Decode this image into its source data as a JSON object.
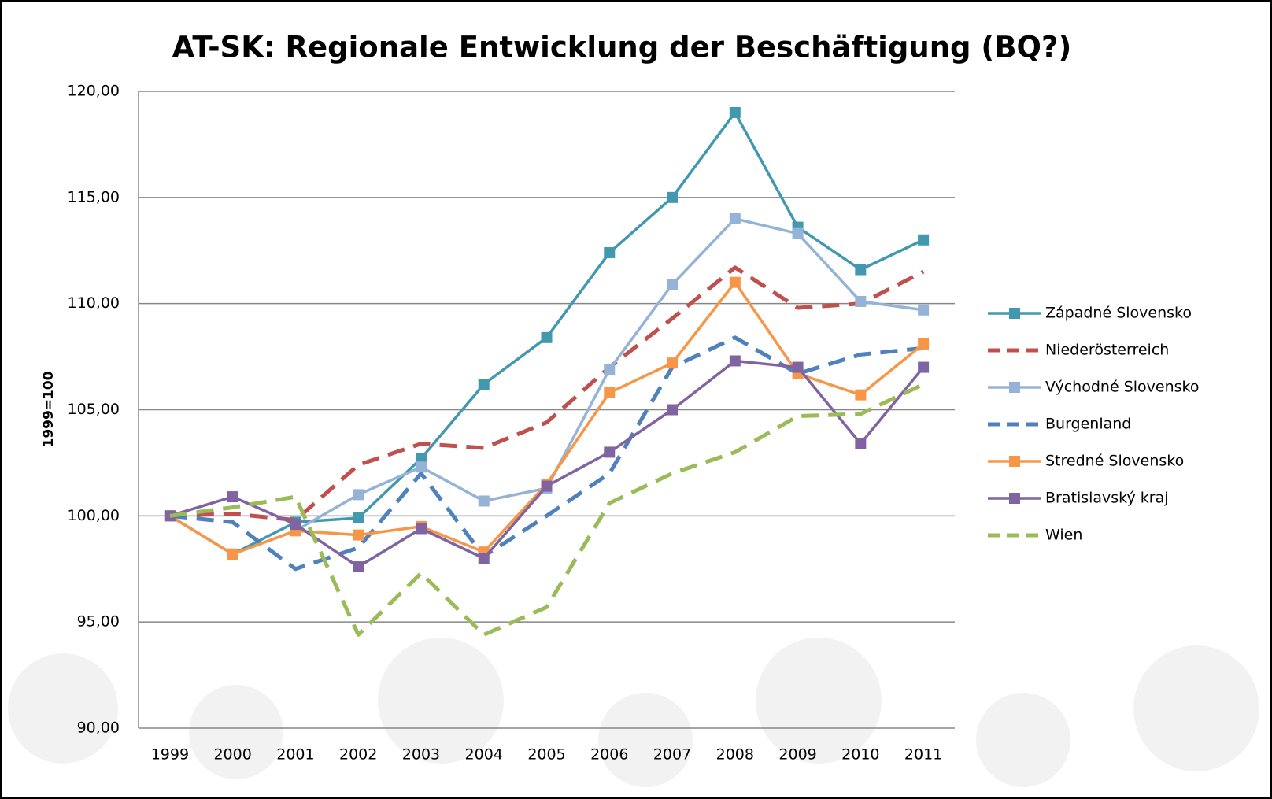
{
  "chart_data": {
    "type": "line",
    "title": "AT-SK: Regionale Entwicklung der Beschäftigung (BQ?)",
    "y_label": "1999=100",
    "categories": [
      "1999",
      "2000",
      "2001",
      "2002",
      "2003",
      "2004",
      "2005",
      "2006",
      "2007",
      "2008",
      "2009",
      "2010",
      "2011"
    ],
    "ylim": [
      90,
      120
    ],
    "yticks": [
      {
        "value": 90,
        "label": "90,00"
      },
      {
        "value": 95,
        "label": "95,00"
      },
      {
        "value": 100,
        "label": "100,00"
      },
      {
        "value": 105,
        "label": "105,00"
      },
      {
        "value": 110,
        "label": "110,00"
      },
      {
        "value": 115,
        "label": "115,00"
      },
      {
        "value": 120,
        "label": "120,00"
      }
    ],
    "grid": true,
    "legend": "right",
    "series": [
      {
        "name": "Západné Slovensko",
        "color": "#4198af",
        "line_style": "solid",
        "values": [
          100,
          98.2,
          99.7,
          99.9,
          102.7,
          106.2,
          108.4,
          112.4,
          115.0,
          119.0,
          113.6,
          111.6,
          113.0
        ]
      },
      {
        "name": "Niederösterreich",
        "color": "#c0504d",
        "line_style": "dashed",
        "values": [
          100,
          100.1,
          99.8,
          102.4,
          103.4,
          103.2,
          104.4,
          107.0,
          109.3,
          111.7,
          109.8,
          110.0,
          111.5
        ]
      },
      {
        "name": "Východné Slovensko",
        "color": "#95b3d7",
        "line_style": "solid",
        "values": [
          100,
          98.2,
          99.3,
          101.0,
          102.3,
          100.7,
          101.3,
          106.9,
          110.9,
          114.0,
          113.3,
          110.1,
          109.7
        ]
      },
      {
        "name": "Burgenland",
        "color": "#4f81bd",
        "line_style": "dashed",
        "values": [
          100,
          99.7,
          97.5,
          98.5,
          102.0,
          98.1,
          100.0,
          102.0,
          107.0,
          108.4,
          106.7,
          107.6,
          107.9
        ]
      },
      {
        "name": "Stredné Slovensko",
        "color": "#f79646",
        "line_style": "solid",
        "values": [
          100,
          98.2,
          99.3,
          99.1,
          99.5,
          98.3,
          101.5,
          105.8,
          107.2,
          111.0,
          106.7,
          105.7,
          108.1
        ]
      },
      {
        "name": "Bratislavský kraj",
        "color": "#8064a2",
        "line_style": "solid",
        "values": [
          100,
          100.9,
          99.6,
          97.6,
          99.4,
          98.0,
          101.4,
          103.0,
          105.0,
          107.3,
          107.0,
          103.4,
          107.0
        ]
      },
      {
        "name": "Wien",
        "color": "#9bbb59",
        "line_style": "dashed",
        "values": [
          100,
          100.4,
          100.9,
          94.4,
          97.3,
          94.4,
          95.7,
          100.6,
          102.0,
          103.0,
          104.7,
          104.8,
          106.2
        ]
      }
    ]
  }
}
